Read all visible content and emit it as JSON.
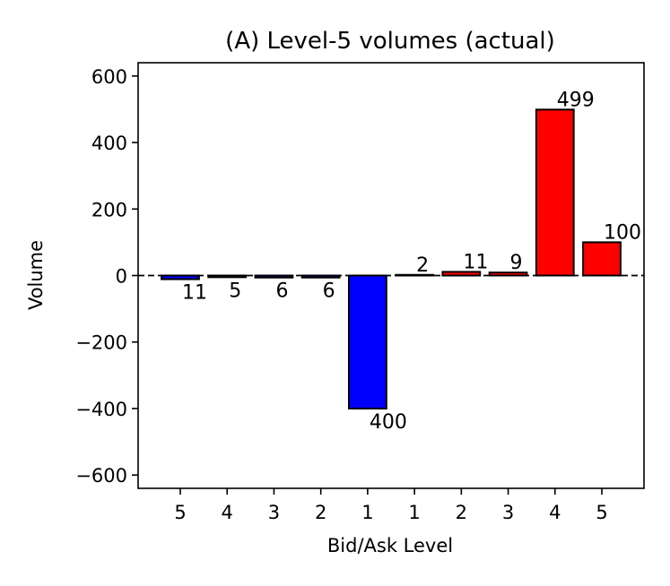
{
  "chart_data": {
    "type": "bar",
    "title": "(A) Level-5 volumes (actual)",
    "xlabel": "Bid/Ask Level",
    "ylabel": "Volume",
    "ylim": [
      -640,
      640
    ],
    "yticks": [
      -600,
      -400,
      -200,
      0,
      200,
      400,
      600
    ],
    "ytick_labels": [
      "−600",
      "−400",
      "−200",
      "0",
      "200",
      "400",
      "600"
    ],
    "categories": [
      "5",
      "4",
      "3",
      "2",
      "1",
      "1",
      "2",
      "3",
      "4",
      "5"
    ],
    "values": [
      -11,
      -5,
      -6,
      -6,
      -400,
      2,
      11,
      9,
      499,
      100
    ],
    "data_labels": [
      "11",
      "5",
      "6",
      "6",
      "400",
      "2",
      "11",
      "9",
      "499",
      "100"
    ],
    "bar_colors": [
      "#0000ff",
      "#0000ff",
      "#0000ff",
      "#0000ff",
      "#0000ff",
      "#ff0000",
      "#ff0000",
      "#ff0000",
      "#ff0000",
      "#ff0000"
    ],
    "zero_line": "dashed",
    "grid": false
  }
}
